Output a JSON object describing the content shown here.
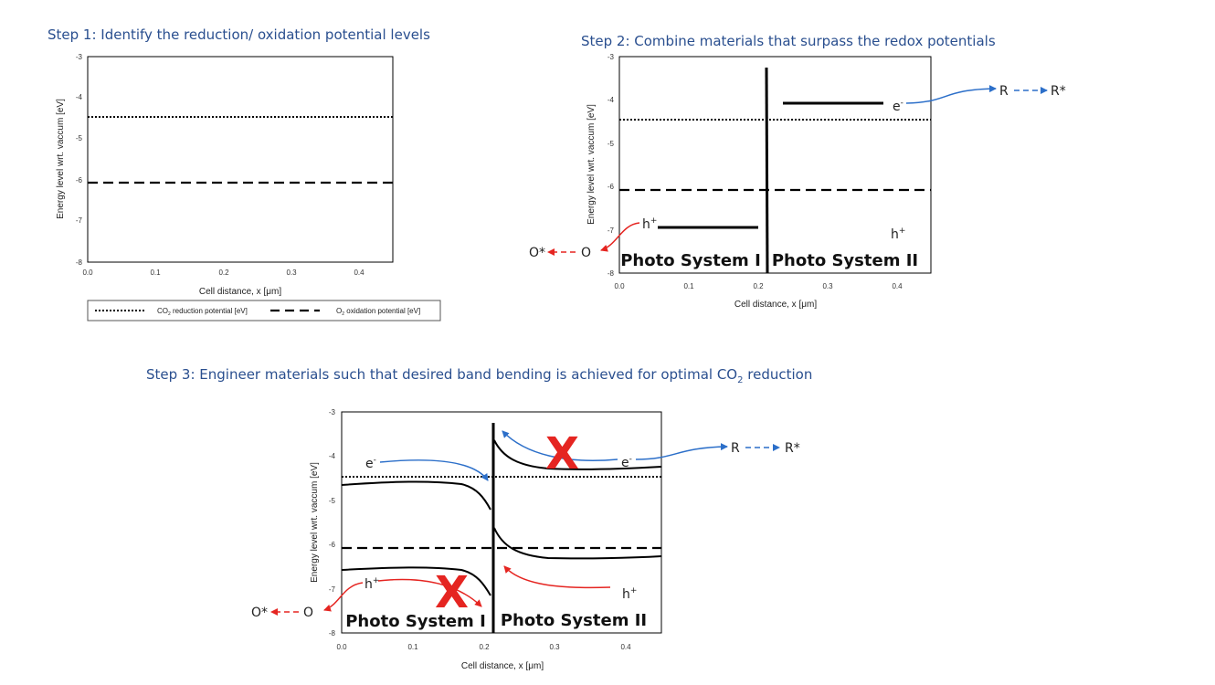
{
  "steps": {
    "step1_title": "Step 1: Identify the reduction/ oxidation potential levels",
    "step2_title": "Step 2: Combine materials that surpass the redox potentials",
    "step3_title_pre": "Step 3: Engineer materials such that desired band bending is achieved for optimal CO",
    "step3_title_sub": "2",
    "step3_title_post": " reduction"
  },
  "axes": {
    "ylabel": "Energy level wrt. vaccum [eV]",
    "xlabel": "Cell distance, x [μm]",
    "yticks": [
      "-3",
      "-4",
      "-5",
      "-6",
      "-7",
      "-8"
    ],
    "xticks": [
      "0.0",
      "0.1",
      "0.2",
      "0.3",
      "0.4"
    ]
  },
  "legend": {
    "co2_pre": "CO",
    "co2_sub": "2",
    "co2_post": " reduction potential [eV]",
    "o2_pre": "O",
    "o2_sub": "2",
    "o2_post": " oxidation potential [eV]"
  },
  "labels": {
    "ps1": "Photo System I",
    "ps2": "Photo System II",
    "electron": "e",
    "electron_sup": "-",
    "hole": "h",
    "hole_sup": "+",
    "o_star": "O*",
    "o": "O",
    "r": "R",
    "r_star": "R*",
    "x_mark": "X"
  },
  "chart_data": [
    {
      "type": "line",
      "title": "Step 1: Identify the reduction/ oxidation potential levels",
      "xlabel": "Cell distance, x [μm]",
      "ylabel": "Energy level wrt. vaccum [eV]",
      "xlim": [
        0,
        0.45
      ],
      "ylim": [
        -8,
        -3
      ],
      "series": [
        {
          "name": "CO2 reduction potential [eV]",
          "style": "dotted",
          "x": [
            0,
            0.45
          ],
          "y": [
            -4.45,
            -4.45
          ]
        },
        {
          "name": "O2 oxidation potential [eV]",
          "style": "dashed",
          "x": [
            0,
            0.45
          ],
          "y": [
            -6.05,
            -6.05
          ]
        }
      ],
      "legend": "bottom"
    },
    {
      "type": "line",
      "title": "Step 2: Combine materials that surpass the redox potentials",
      "xlabel": "Cell distance, x [μm]",
      "ylabel": "Energy level wrt. vaccum [eV]",
      "xlim": [
        0,
        0.45
      ],
      "ylim": [
        -8,
        -3
      ],
      "series": [
        {
          "style": "dotted",
          "x": [
            0,
            0.45
          ],
          "y": [
            -4.48,
            -4.48
          ]
        },
        {
          "style": "dashed",
          "x": [
            0,
            0.45
          ],
          "y": [
            -6.05,
            -6.05
          ]
        },
        {
          "style": "solid",
          "x": [
            0.055,
            0.2
          ],
          "y": [
            -6.9,
            -6.9
          ]
        },
        {
          "style": "solid",
          "x": [
            0.235,
            0.38
          ],
          "y": [
            -4.1,
            -4.1
          ]
        },
        {
          "style": "solid",
          "x": [
            0.21,
            0.21
          ],
          "y": [
            -3.25,
            -8
          ]
        }
      ]
    },
    {
      "type": "line",
      "title": "Step 3: Engineer materials such that desired band bending is achieved for optimal CO2 reduction",
      "xlabel": "Cell distance, x [μm]",
      "ylabel": "Energy level wrt. vaccum [eV]",
      "xlim": [
        0,
        0.45
      ],
      "ylim": [
        -8,
        -3
      ],
      "series": [
        {
          "style": "dotted",
          "x": [
            0,
            0.45
          ],
          "y": [
            -4.48,
            -4.48
          ]
        },
        {
          "style": "dashed",
          "x": [
            0,
            0.45
          ],
          "y": [
            -6.05,
            -6.05
          ]
        },
        {
          "style": "solid",
          "x": [
            0,
            0.1,
            0.18,
            0.21
          ],
          "y": [
            -4.65,
            -4.6,
            -4.75,
            -5.35
          ]
        },
        {
          "style": "solid",
          "x": [
            0,
            0.1,
            0.18,
            0.21
          ],
          "y": [
            -6.55,
            -6.5,
            -6.65,
            -7.25
          ]
        },
        {
          "style": "solid",
          "x": [
            0.215,
            0.25,
            0.3,
            0.45
          ],
          "y": [
            -3.7,
            -4.2,
            -4.35,
            -4.25
          ]
        },
        {
          "style": "solid",
          "x": [
            0.215,
            0.25,
            0.3,
            0.45
          ],
          "y": [
            -5.6,
            -6.15,
            -6.3,
            -6.25
          ]
        },
        {
          "style": "solid",
          "x": [
            0.213,
            0.213
          ],
          "y": [
            -3.15,
            -8
          ]
        }
      ]
    }
  ]
}
